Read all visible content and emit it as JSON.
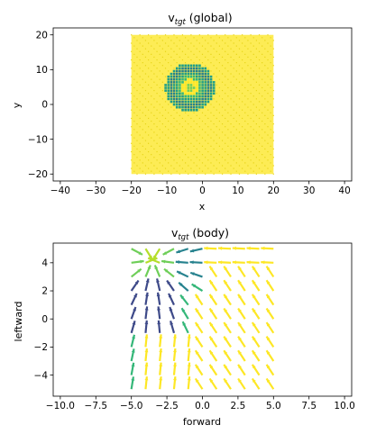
{
  "colors": {
    "yellow": "#fde725",
    "yellow_green": "#b5de2b",
    "green": "#6ece58",
    "teal_green": "#35b779",
    "teal": "#1f9e89",
    "blue_teal": "#26828e",
    "blue": "#31688e",
    "dark_blue": "#3e4a89"
  },
  "chart_data": [
    {
      "type": "quiver",
      "title_main": "v",
      "title_sub": "tgt",
      "title_suffix": " (global)",
      "xlabel": "x",
      "ylabel": "y",
      "xlim": [
        -42,
        42
      ],
      "ylim": [
        -22,
        22
      ],
      "xticks": [
        "−40",
        "−30",
        "−20",
        "−10",
        "0",
        "10",
        "20",
        "30",
        "40"
      ],
      "xtick_values": [
        -40,
        -30,
        -20,
        -10,
        0,
        10,
        20,
        30,
        40
      ],
      "yticks": [
        "−20",
        "−10",
        "0",
        "10",
        "20"
      ],
      "ytick_values": [
        -20,
        -10,
        0,
        10,
        20
      ],
      "field": {
        "x_range": [
          -20,
          20
        ],
        "y_range": [
          -20,
          20
        ],
        "step": 0.8,
        "target_center": [
          -3.5,
          5
        ],
        "inner_radius": 1.2,
        "outer_radius": 7,
        "color_default": "yellow"
      },
      "grid": false
    },
    {
      "type": "quiver",
      "title_main": "v",
      "title_sub": "tgt",
      "title_suffix": " (body)",
      "xlabel": "forward",
      "ylabel": "leftward",
      "xlim": [
        -10.5,
        10.5
      ],
      "ylim": [
        -5.5,
        5.4
      ],
      "xticks": [
        "−10.0",
        "−7.5",
        "−5.0",
        "−2.5",
        "0.0",
        "2.5",
        "5.0",
        "7.5",
        "10.0"
      ],
      "xtick_values": [
        -10,
        -7.5,
        -5,
        -2.5,
        0,
        2.5,
        5,
        7.5,
        10
      ],
      "yticks": [
        "−4",
        "−2",
        "0",
        "2",
        "4"
      ],
      "ytick_values": [
        -4,
        -2,
        0,
        2,
        4
      ],
      "field": {
        "x_range": [
          -5,
          5
        ],
        "y_range": [
          -5,
          5
        ],
        "step": 1,
        "target": [
          -3.5,
          4.2
        ],
        "blue_radius": 2.2
      },
      "grid": false
    }
  ]
}
